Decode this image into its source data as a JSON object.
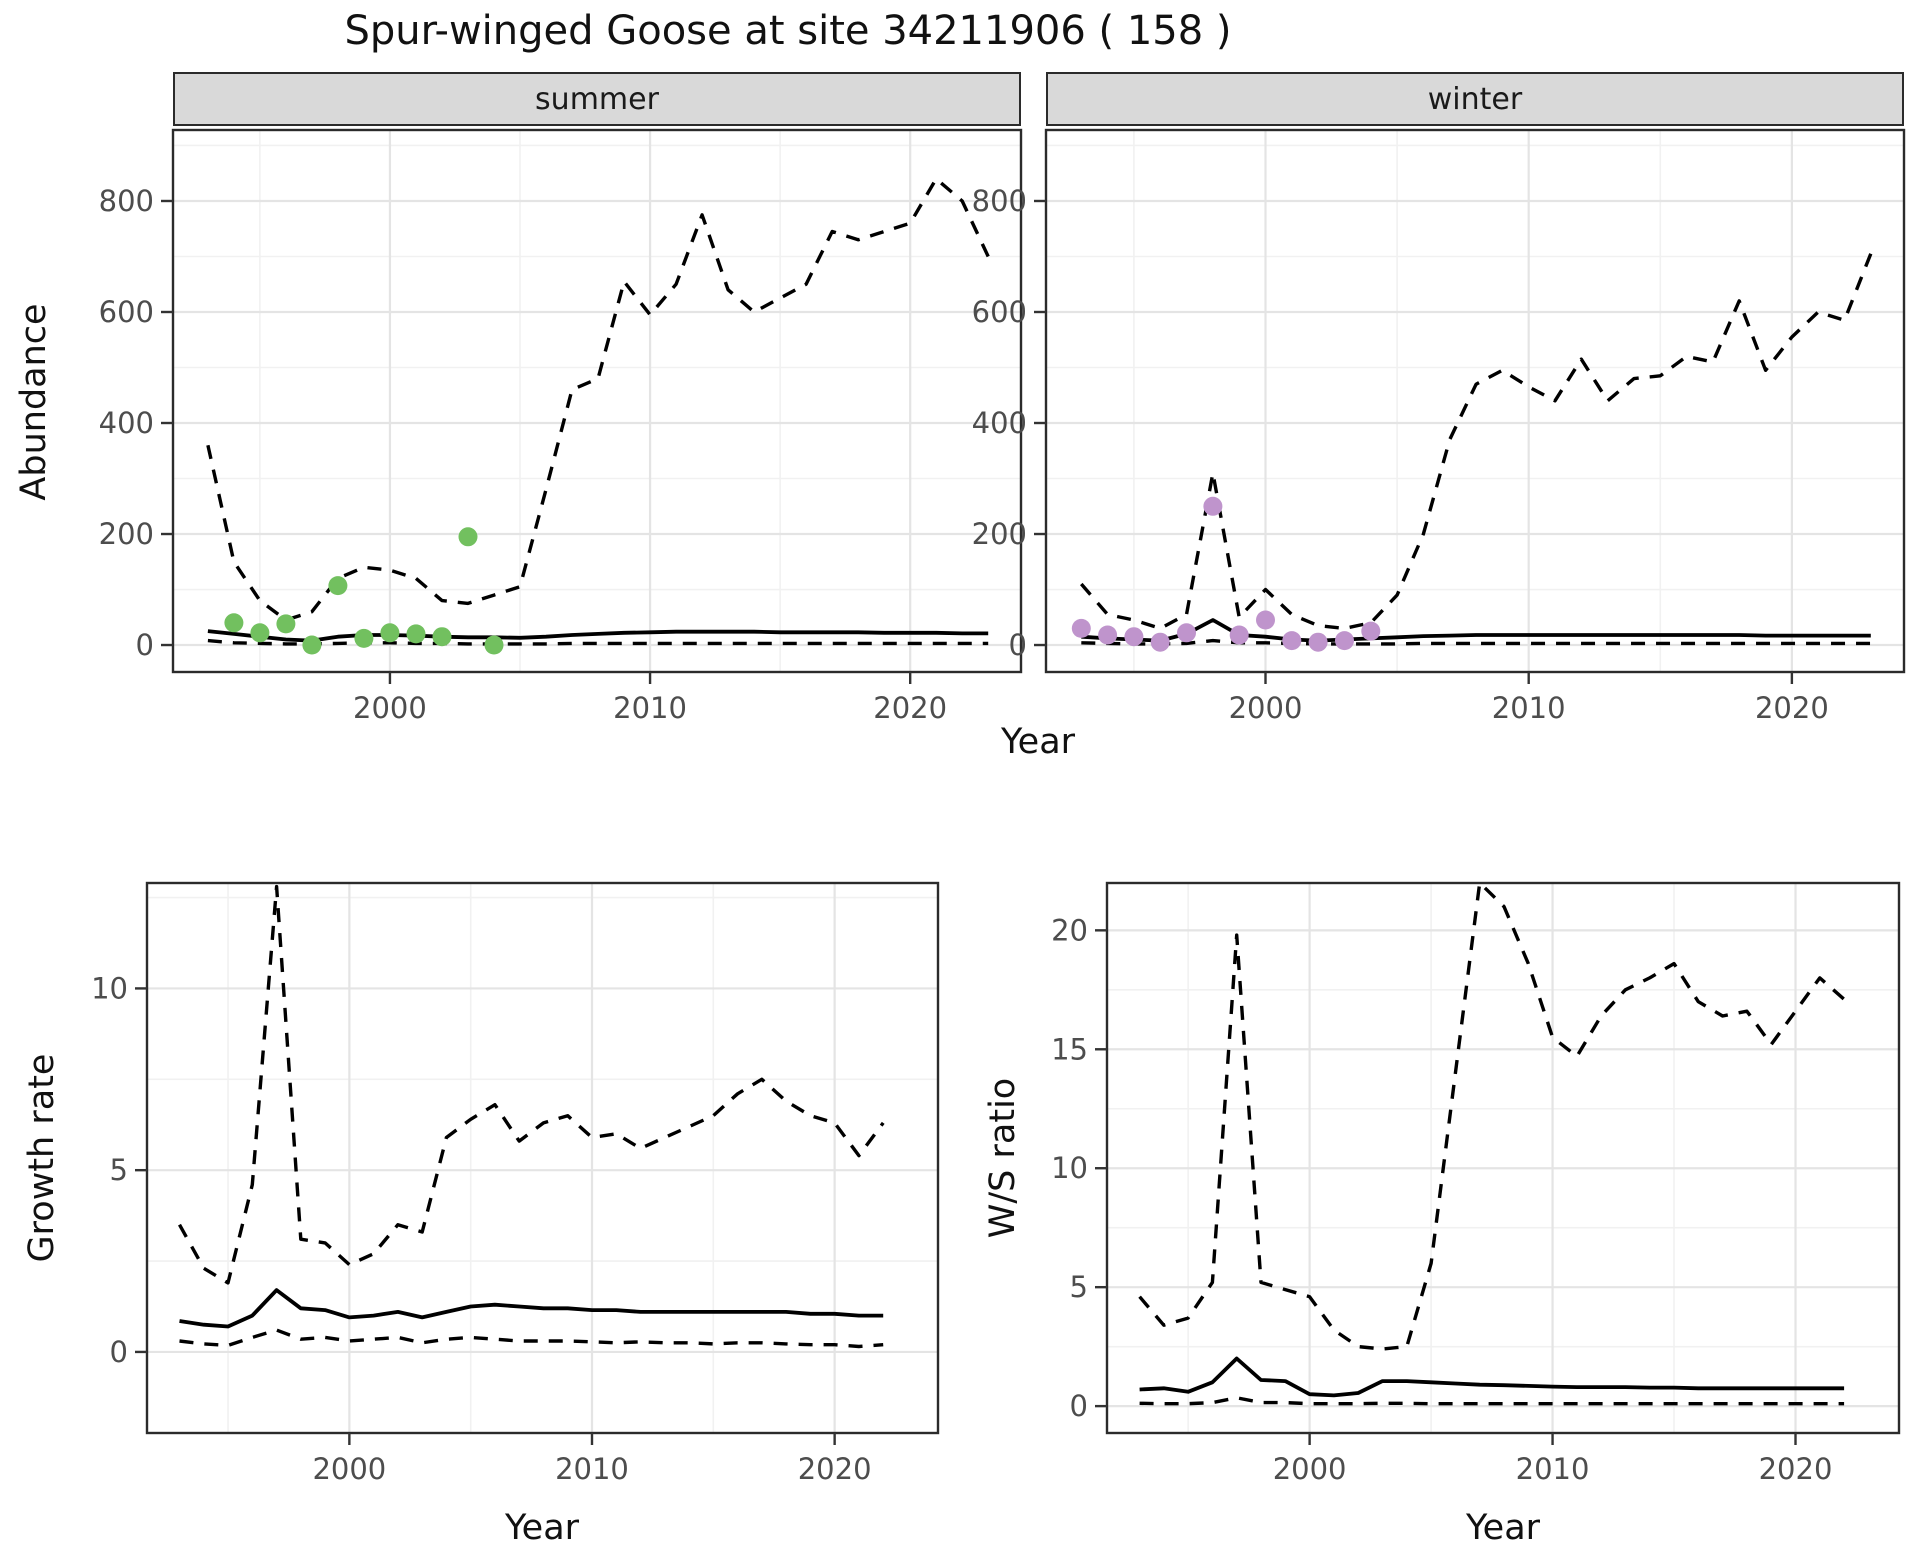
{
  "title": "Spur-winged Goose at site 34211906 ( 158 )",
  "facets": [
    "summer",
    "winter"
  ],
  "top_row": {
    "xlabel": "Year",
    "ylabel": "Abundance"
  },
  "bottom_row": {
    "xlabel": "Year",
    "left_ylabel": "Growth rate",
    "right_ylabel": "W/S ratio"
  },
  "colors": {
    "summer_point": "#72c05f",
    "winter_point": "#bf94cc",
    "line": "#000000",
    "grid_major": "#e4e4e4",
    "grid_minor": "#f1f1f1",
    "panel_border": "#2b2b2b",
    "tick_text": "#4d4d4d",
    "strip_bg": "#d9d9d9"
  },
  "chart_data": [
    {
      "id": "abundance_summer",
      "type": "line",
      "facet": "summer",
      "xlabel": "Year",
      "ylabel": "Abundance",
      "xlim": [
        1991.66,
        2024.26
      ],
      "ylim": [
        -48.6,
        927.9
      ],
      "x_ticks": [
        2000,
        2010,
        2020
      ],
      "y_ticks": [
        0,
        200,
        400,
        600,
        800
      ],
      "x_minor": [
        1995,
        2005,
        2015
      ],
      "y_minor": [
        100,
        300,
        500,
        700,
        900
      ],
      "x": [
        1993,
        1994,
        1995,
        1996,
        1997,
        1998,
        1999,
        2000,
        2001,
        2002,
        2003,
        2004,
        2005,
        2006,
        2007,
        2008,
        2009,
        2010,
        2011,
        2012,
        2013,
        2014,
        2015,
        2016,
        2017,
        2018,
        2019,
        2020,
        2021,
        2022,
        2023
      ],
      "series": [
        {
          "name": "upper_ci",
          "style": "dashed",
          "values": [
            360,
            150,
            80,
            45,
            60,
            120,
            140,
            135,
            120,
            80,
            75,
            90,
            105,
            280,
            460,
            480,
            655,
            595,
            650,
            775,
            640,
            600,
            625,
            650,
            745,
            730,
            745,
            760,
            840,
            800,
            700
          ]
        },
        {
          "name": "median_prediction",
          "style": "solid",
          "values": [
            25,
            20,
            15,
            10,
            8,
            15,
            18,
            18,
            17,
            15,
            14,
            14,
            13,
            15,
            18,
            20,
            22,
            23,
            24,
            24,
            24,
            24,
            23,
            23,
            23,
            23,
            22,
            22,
            22,
            21,
            21
          ]
        },
        {
          "name": "lower_ci",
          "style": "dashed",
          "values": [
            8,
            4,
            3,
            2,
            2,
            3,
            4,
            4,
            3,
            3,
            2,
            2,
            2,
            2,
            3,
            3,
            3,
            3,
            3,
            3,
            3,
            3,
            3,
            3,
            3,
            3,
            3,
            3,
            3,
            3,
            3
          ]
        }
      ],
      "points": {
        "name": "observed_counts",
        "color": "#72c05f",
        "x": [
          1994,
          1995,
          1996,
          1997,
          1998,
          1999,
          2000,
          2001,
          2002,
          2003,
          2004
        ],
        "y": [
          40,
          22,
          38,
          0,
          107,
          12,
          22,
          20,
          15,
          195,
          0
        ]
      }
    },
    {
      "id": "abundance_winter",
      "type": "line",
      "facet": "winter",
      "xlabel": "Year",
      "ylabel": "Abundance",
      "xlim": [
        1991.66,
        2024.26
      ],
      "ylim": [
        -48.6,
        927.9
      ],
      "x_ticks": [
        2000,
        2010,
        2020
      ],
      "y_ticks": [
        0,
        200,
        400,
        600,
        800
      ],
      "x_minor": [
        1995,
        2005,
        2015
      ],
      "y_minor": [
        100,
        300,
        500,
        700,
        900
      ],
      "x": [
        1993,
        1994,
        1995,
        1996,
        1997,
        1998,
        1999,
        2000,
        2001,
        2002,
        2003,
        2004,
        2005,
        2006,
        2007,
        2008,
        2009,
        2010,
        2011,
        2012,
        2013,
        2014,
        2015,
        2016,
        2017,
        2018,
        2019,
        2020,
        2021,
        2022,
        2023
      ],
      "series": [
        {
          "name": "upper_ci",
          "style": "dashed",
          "values": [
            110,
            55,
            45,
            30,
            55,
            310,
            50,
            100,
            55,
            35,
            30,
            40,
            90,
            200,
            370,
            470,
            495,
            465,
            440,
            515,
            440,
            480,
            485,
            520,
            510,
            620,
            495,
            555,
            600,
            585,
            705
          ]
        },
        {
          "name": "median_prediction",
          "style": "solid",
          "values": [
            15,
            12,
            10,
            8,
            20,
            45,
            18,
            15,
            10,
            8,
            10,
            12,
            14,
            16,
            17,
            18,
            18,
            18,
            18,
            18,
            18,
            18,
            18,
            18,
            18,
            18,
            17,
            17,
            17,
            17,
            17
          ]
        },
        {
          "name": "lower_ci",
          "style": "dashed",
          "values": [
            4,
            3,
            2,
            2,
            3,
            8,
            4,
            4,
            3,
            2,
            2,
            2,
            2,
            3,
            3,
            3,
            3,
            3,
            3,
            3,
            3,
            3,
            3,
            3,
            3,
            3,
            3,
            3,
            3,
            3,
            3
          ]
        }
      ],
      "points": {
        "name": "observed_counts",
        "color": "#bf94cc",
        "x": [
          1993,
          1994,
          1995,
          1996,
          1997,
          1998,
          1999,
          2000,
          2001,
          2002,
          2003,
          2004
        ],
        "y": [
          30,
          18,
          15,
          5,
          22,
          250,
          18,
          45,
          8,
          5,
          8,
          25
        ]
      }
    },
    {
      "id": "growth_rate",
      "type": "line",
      "facet": null,
      "xlabel": "Year",
      "ylabel": "Growth rate",
      "xlim": [
        1991.66,
        2024.26
      ],
      "ylim": [
        -2.23,
        12.9
      ],
      "x_ticks": [
        2000,
        2010,
        2020
      ],
      "y_ticks": [
        0,
        5,
        10
      ],
      "x_minor": [
        1995,
        2005,
        2015
      ],
      "y_minor": [
        2.5,
        7.5,
        12.5
      ],
      "x": [
        1993,
        1994,
        1995,
        1996,
        1997,
        1998,
        1999,
        2000,
        2001,
        2002,
        2003,
        2004,
        2005,
        2006,
        2007,
        2008,
        2009,
        2010,
        2011,
        2012,
        2013,
        2014,
        2015,
        2016,
        2017,
        2018,
        2019,
        2020,
        2021,
        2022
      ],
      "series": [
        {
          "name": "upper_ci",
          "style": "dashed",
          "values": [
            3.5,
            2.3,
            1.9,
            4.6,
            12.8,
            3.1,
            3.0,
            2.4,
            2.7,
            3.5,
            3.3,
            5.9,
            6.4,
            6.8,
            5.8,
            6.3,
            6.5,
            5.9,
            6.0,
            5.6,
            5.9,
            6.2,
            6.5,
            7.1,
            7.5,
            6.9,
            6.5,
            6.3,
            5.4,
            6.3
          ]
        },
        {
          "name": "median_prediction",
          "style": "solid",
          "values": [
            0.85,
            0.75,
            0.7,
            1.0,
            1.7,
            1.2,
            1.15,
            0.95,
            1.0,
            1.1,
            0.95,
            1.1,
            1.25,
            1.3,
            1.25,
            1.2,
            1.2,
            1.15,
            1.15,
            1.1,
            1.1,
            1.1,
            1.1,
            1.1,
            1.1,
            1.1,
            1.05,
            1.05,
            1.0,
            1.0
          ]
        },
        {
          "name": "lower_ci",
          "style": "dashed",
          "values": [
            0.3,
            0.22,
            0.18,
            0.4,
            0.6,
            0.35,
            0.4,
            0.3,
            0.35,
            0.4,
            0.25,
            0.35,
            0.4,
            0.35,
            0.3,
            0.3,
            0.3,
            0.28,
            0.25,
            0.28,
            0.25,
            0.25,
            0.22,
            0.25,
            0.25,
            0.22,
            0.2,
            0.2,
            0.15,
            0.2
          ]
        }
      ],
      "points": null
    },
    {
      "id": "ws_ratio",
      "type": "line",
      "facet": null,
      "xlabel": "Year",
      "ylabel": "W/S ratio",
      "xlim": [
        1991.66,
        2024.26
      ],
      "ylim": [
        -1.13,
        21.99
      ],
      "x_ticks": [
        2000,
        2010,
        2020
      ],
      "y_ticks": [
        0,
        5,
        10,
        15,
        20
      ],
      "x_minor": [
        1995,
        2005,
        2015
      ],
      "y_minor": [
        2.5,
        7.5,
        12.5,
        17.5
      ],
      "x": [
        1993,
        1994,
        1995,
        1996,
        1997,
        1998,
        1999,
        2000,
        2001,
        2002,
        2003,
        2004,
        2005,
        2006,
        2007,
        2008,
        2009,
        2010,
        2011,
        2012,
        2013,
        2014,
        2015,
        2016,
        2017,
        2018,
        2019,
        2020,
        2021,
        2022
      ],
      "series": [
        {
          "name": "upper_ci",
          "style": "dashed",
          "values": [
            4.6,
            3.4,
            3.7,
            5.2,
            19.8,
            5.2,
            4.9,
            4.6,
            3.2,
            2.5,
            2.4,
            2.5,
            6.0,
            14.0,
            22.0,
            21.0,
            18.6,
            15.5,
            14.7,
            16.4,
            17.5,
            18.0,
            18.6,
            17.0,
            16.4,
            16.6,
            15.2,
            16.6,
            18.0,
            17.1
          ]
        },
        {
          "name": "median_prediction",
          "style": "solid",
          "values": [
            0.7,
            0.75,
            0.6,
            1.0,
            2.0,
            1.1,
            1.05,
            0.5,
            0.45,
            0.55,
            1.05,
            1.05,
            1.0,
            0.95,
            0.9,
            0.88,
            0.85,
            0.82,
            0.8,
            0.8,
            0.8,
            0.78,
            0.78,
            0.75,
            0.75,
            0.75,
            0.75,
            0.75,
            0.75,
            0.75
          ]
        },
        {
          "name": "lower_ci",
          "style": "dashed",
          "values": [
            0.12,
            0.1,
            0.1,
            0.15,
            0.35,
            0.15,
            0.15,
            0.1,
            0.1,
            0.1,
            0.12,
            0.12,
            0.1,
            0.1,
            0.1,
            0.1,
            0.1,
            0.1,
            0.1,
            0.1,
            0.1,
            0.1,
            0.1,
            0.1,
            0.1,
            0.1,
            0.1,
            0.1,
            0.1,
            0.1
          ]
        }
      ],
      "points": null
    }
  ]
}
